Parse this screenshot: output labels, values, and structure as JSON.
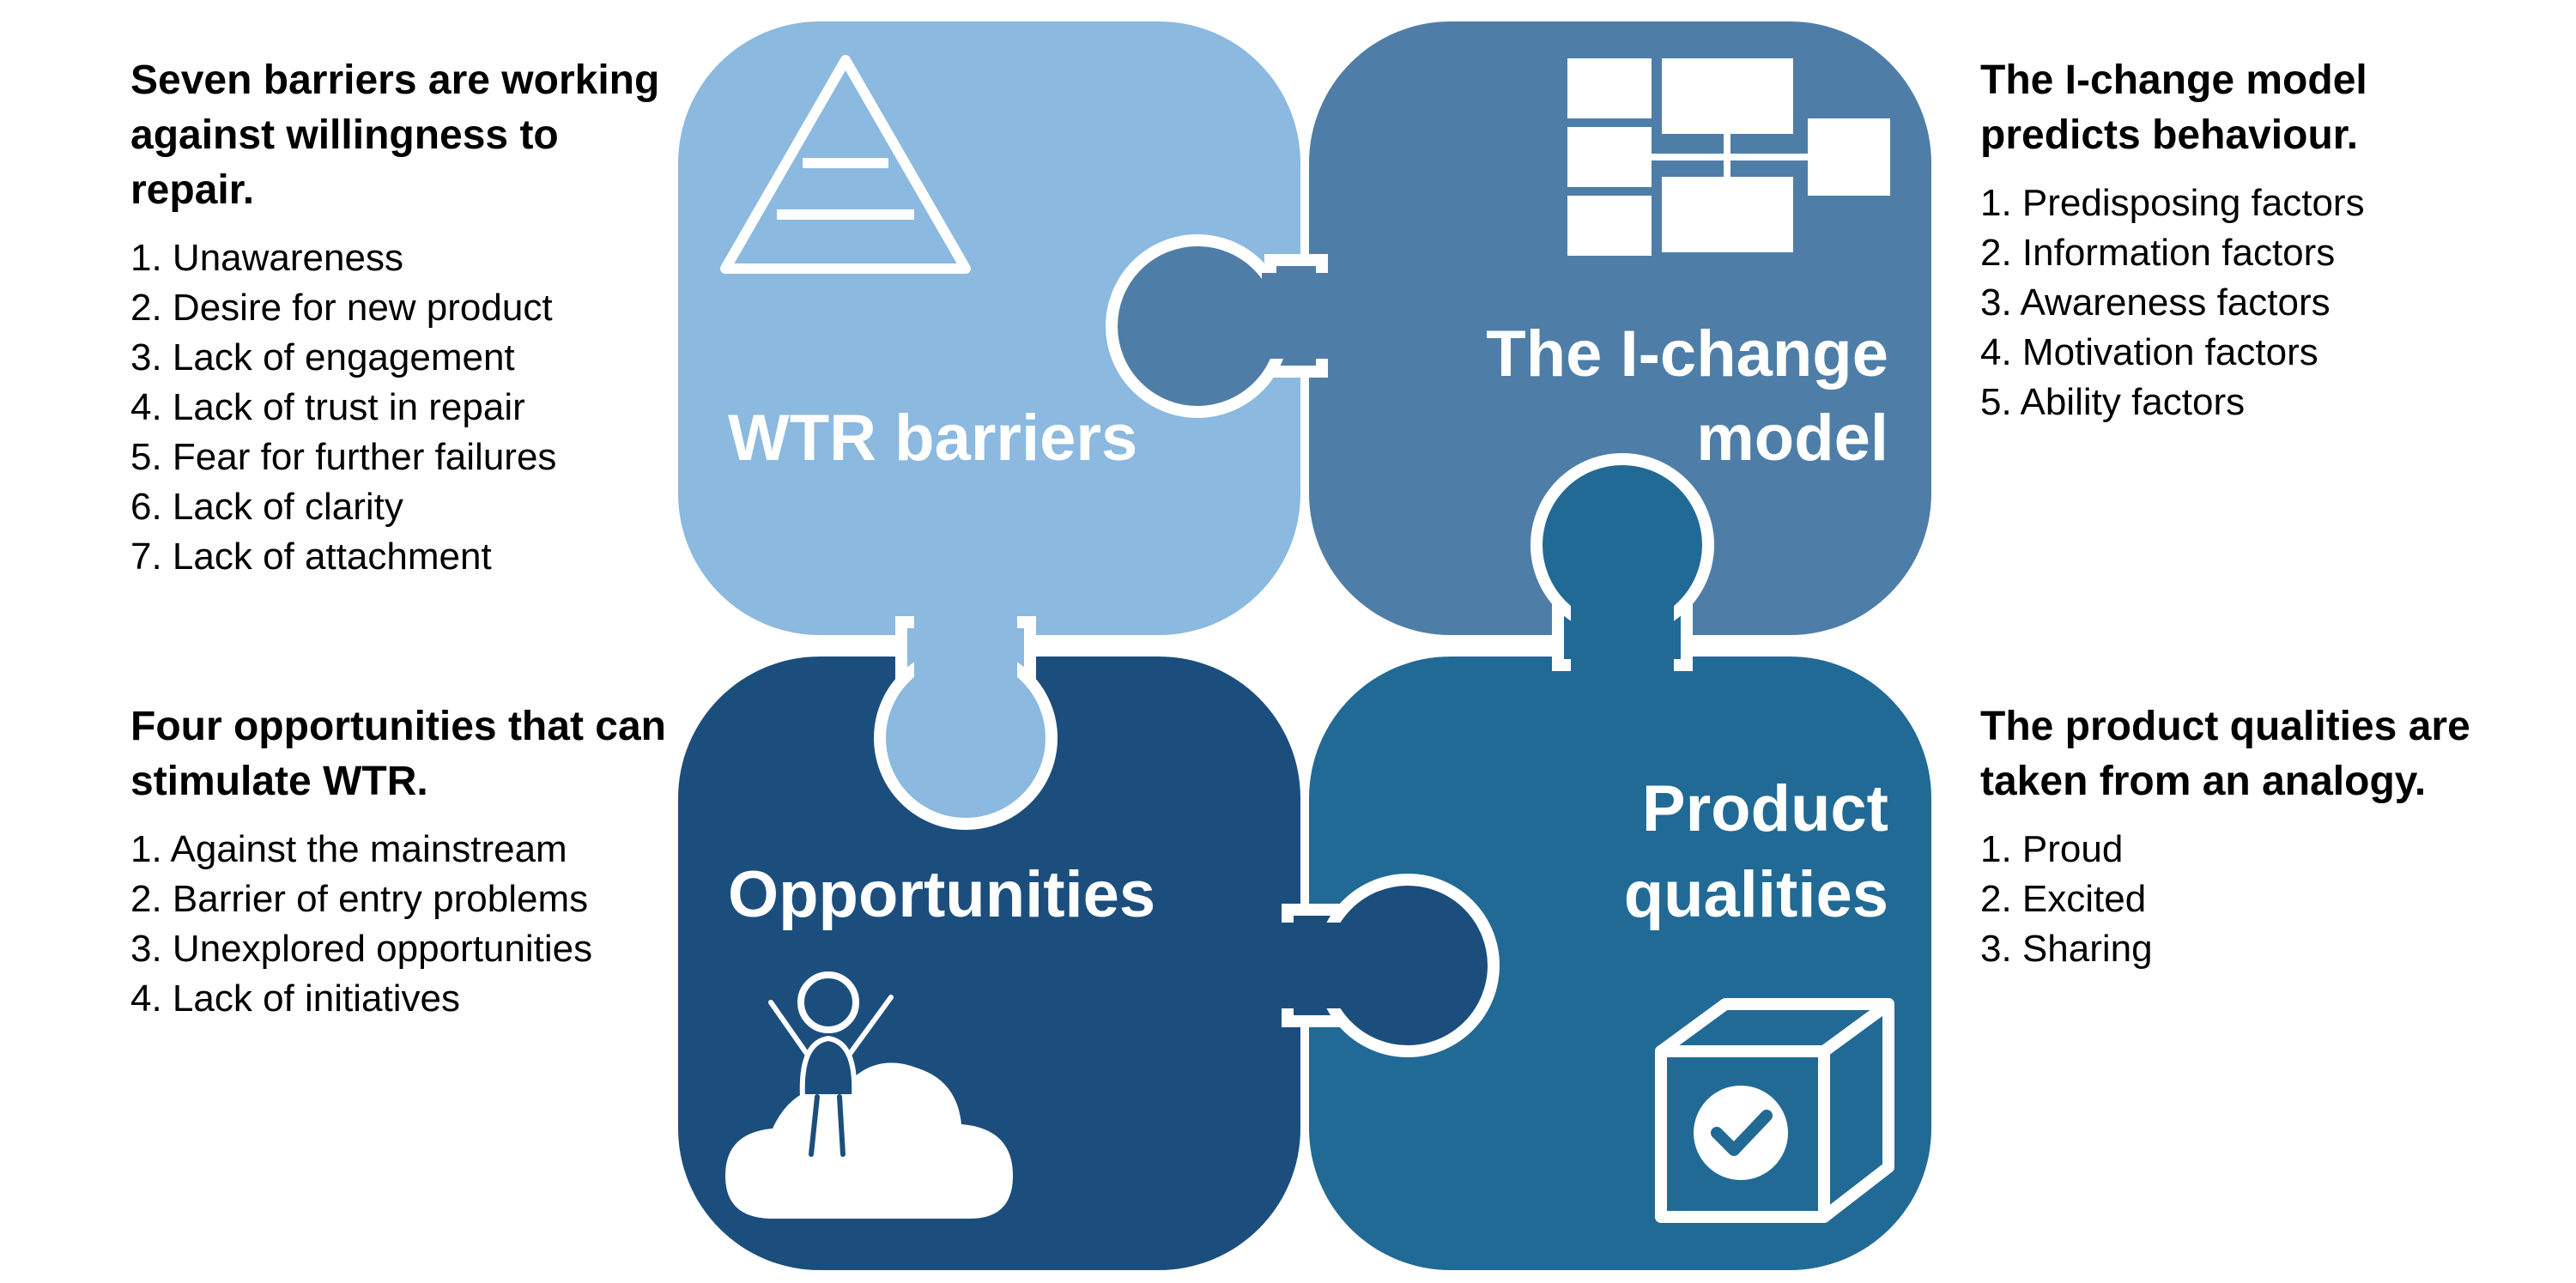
{
  "colors": {
    "barriers_piece": "#8bb9df",
    "ichange_piece": "#4e7ea8",
    "opportunities_piece": "#1b4e7d",
    "qualities_piece": "#226a96",
    "icon_fill": "#ffffff",
    "text": "#000000"
  },
  "puzzle": {
    "barriers_label": "WTR barriers",
    "ichange_label_line1": "The I-change",
    "ichange_label_line2": "model",
    "opportunities_label": "Opportunities",
    "qualities_label_line1": "Product",
    "qualities_label_line2": "qualities"
  },
  "icons": {
    "barriers": "pyramid-icon",
    "ichange": "flowchart-icon",
    "opportunities": "person-on-cloud-icon",
    "qualities": "checked-box-icon"
  },
  "barriers": {
    "title": "Seven barriers are working against willingness to repair.",
    "items": [
      "1. Unawareness",
      "2. Desire for new product",
      "3. Lack of engagement",
      "4. Lack of trust in repair",
      "5. Fear for further failures",
      "6. Lack of clarity",
      "7. Lack of attachment"
    ]
  },
  "ichange": {
    "title": "The I-change model predicts behaviour.",
    "items": [
      "1. Predisposing factors",
      "2. Information factors",
      "3. Awareness factors",
      "4. Motivation factors",
      "5. Ability factors"
    ]
  },
  "opportunities": {
    "title": "Four opportunities that can stimulate WTR.",
    "items": [
      "1. Against the mainstream",
      "2. Barrier of entry problems",
      "3. Unexplored opportunities",
      "4. Lack of initiatives"
    ]
  },
  "qualities": {
    "title": "The product qualities are taken from an analogy.",
    "items": [
      "1. Proud",
      "2. Excited",
      "3. Sharing"
    ]
  }
}
